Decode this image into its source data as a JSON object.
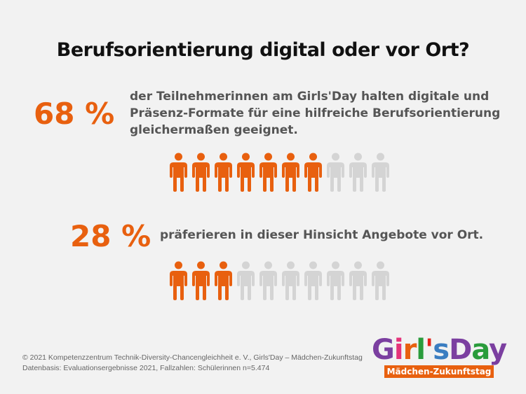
{
  "title": "Berufsorientierung digital oder vor Ort?",
  "stats": [
    {
      "percent": "68 %",
      "text": "der Teilnehmerinnen am Girls'Day halten digitale und Präsenz-Formate für eine hilfreiche Berufsorientierung gleichermaßen geeignet.",
      "filled": 7,
      "total": 10
    },
    {
      "percent": "28 %",
      "text": "präferieren in dieser Hinsicht Angebote vor Ort.",
      "filled": 3,
      "total": 10
    }
  ],
  "colors": {
    "accent": "#e8600f",
    "inactive": "#d4d4d4",
    "text": "#555555",
    "title": "#111111",
    "background": "#f2f2f2"
  },
  "footer": {
    "line1": "© 2021 Kompetenzzentrum Technik-Diversity-Chancengleichheit e. V., Girls'Day – Mädchen-Zukunftstag",
    "line2": "Datenbasis: Evaluationsergebnisse 2021, Fallzahlen: Schülerinnen n=5.474"
  },
  "logo": {
    "text": "Girls'Day",
    "subtitle": "Mädchen-Zukunftstag"
  },
  "icons": {
    "person": "person-icon"
  }
}
